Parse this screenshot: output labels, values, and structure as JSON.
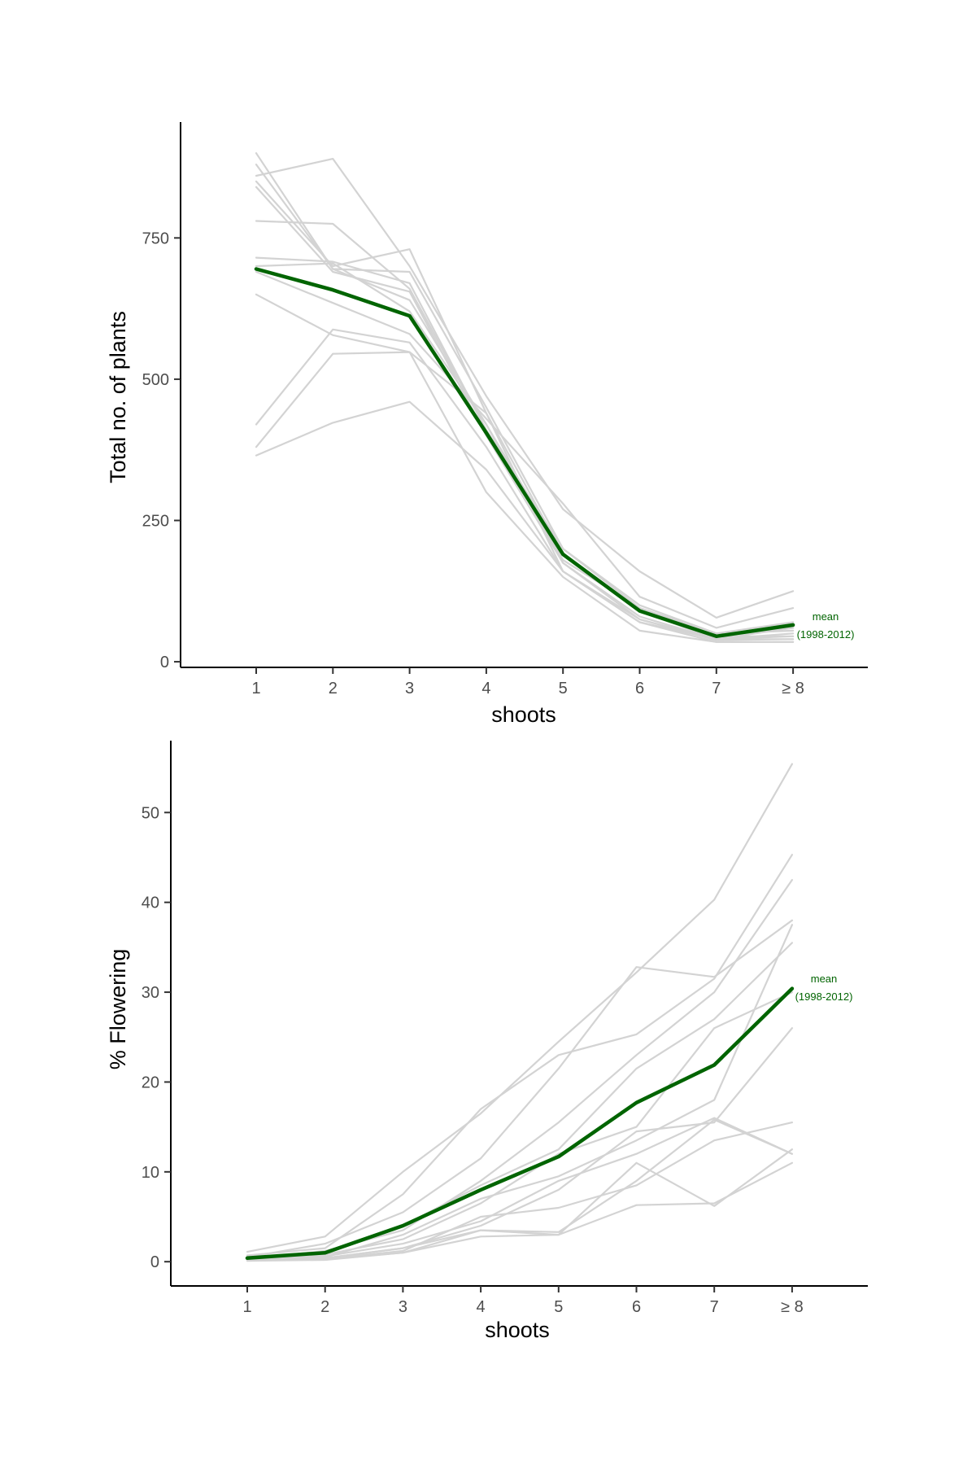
{
  "colors": {
    "background": "#ffffff",
    "year_lines": "#d3d3d3",
    "mean_line": "#006400",
    "axis": "#000000",
    "tick_text": "#4d4d4d"
  },
  "chart_data": [
    {
      "type": "line",
      "xlabel": "shoots",
      "ylabel": "Total no. of plants",
      "categories": [
        "1",
        "2",
        "3",
        "4",
        "5",
        "6",
        "7",
        "≥ 8"
      ],
      "yticks": [
        0,
        250,
        500,
        750
      ],
      "ylim": [
        -10,
        955
      ],
      "grid": false,
      "annotation": {
        "line1": "mean",
        "line2": "(1998-2012)",
        "color": "#006400"
      },
      "mean": {
        "values": [
          695,
          658,
          612,
          405,
          190,
          90,
          45,
          65
        ]
      },
      "years": [
        {
          "values": [
            900,
            695,
            640,
            420,
            175,
            80,
            40,
            50
          ]
        },
        {
          "values": [
            880,
            695,
            690,
            450,
            200,
            100,
            50,
            70
          ]
        },
        {
          "values": [
            860,
            890,
            700,
            470,
            270,
            160,
            78,
            125
          ]
        },
        {
          "values": [
            850,
            700,
            730,
            440,
            190,
            90,
            45,
            60
          ]
        },
        {
          "values": [
            840,
            690,
            655,
            400,
            175,
            75,
            38,
            40
          ]
        },
        {
          "values": [
            780,
            775,
            660,
            410,
            200,
            95,
            45,
            45
          ]
        },
        {
          "values": [
            715,
            708,
            670,
            410,
            180,
            95,
            50,
            55
          ]
        },
        {
          "values": [
            700,
            705,
            620,
            420,
            190,
            90,
            40,
            60
          ]
        },
        {
          "values": [
            690,
            635,
            580,
            430,
            280,
            115,
            60,
            95
          ]
        },
        {
          "values": [
            650,
            578,
            548,
            300,
            150,
            55,
            35,
            35
          ]
        },
        {
          "values": [
            420,
            588,
            565,
            380,
            160,
            70,
            40,
            40
          ]
        },
        {
          "values": [
            380,
            545,
            548,
            440,
            160,
            70,
            35,
            35
          ]
        },
        {
          "values": [
            365,
            423,
            460,
            340,
            160,
            75,
            40,
            45
          ]
        }
      ]
    },
    {
      "type": "line",
      "xlabel": "shoots",
      "ylabel": "% Flowering",
      "categories": [
        "1",
        "2",
        "3",
        "4",
        "5",
        "6",
        "7",
        "≥ 8"
      ],
      "yticks": [
        0,
        10,
        20,
        30,
        40,
        50
      ],
      "ylim": [
        -2.7,
        58
      ],
      "grid": false,
      "annotation": {
        "line1": "mean",
        "line2": "(1998-2012)",
        "color": "#006400"
      },
      "mean": {
        "values": [
          0.4,
          1.0,
          4.0,
          8.0,
          11.7,
          17.7,
          21.9,
          30.4
        ]
      },
      "years": [
        {
          "values": [
            1.1,
            2.8,
            10.0,
            16.5,
            24.5,
            32.2,
            40.3,
            55.4
          ]
        },
        {
          "values": [
            0.7,
            1.5,
            7.5,
            17.0,
            23.0,
            25.3,
            31.5,
            45.3
          ]
        },
        {
          "values": [
            0.5,
            2.0,
            5.5,
            11.5,
            21.5,
            32.8,
            31.7,
            38.0
          ]
        },
        {
          "values": [
            0.3,
            1.2,
            3.5,
            9.0,
            15.5,
            23.0,
            30.0,
            42.5
          ]
        },
        {
          "values": [
            0.5,
            1.0,
            4.0,
            8.5,
            12.5,
            21.5,
            27.0,
            35.5
          ]
        },
        {
          "values": [
            0.4,
            0.8,
            2.5,
            6.5,
            12.0,
            15.0,
            26.0,
            30.0
          ]
        },
        {
          "values": [
            0.3,
            0.5,
            3.0,
            7.0,
            9.5,
            13.5,
            18.0,
            37.5
          ]
        },
        {
          "values": [
            0.2,
            0.4,
            1.5,
            4.0,
            8.0,
            14.5,
            15.5,
            26.0
          ]
        },
        {
          "values": [
            0.3,
            0.6,
            2.0,
            4.5,
            9.0,
            12.0,
            16.0,
            12.0
          ]
        },
        {
          "values": [
            0.2,
            0.3,
            1.2,
            5.0,
            6.0,
            8.5,
            13.5,
            15.5
          ]
        },
        {
          "values": [
            0.1,
            0.2,
            1.0,
            3.5,
            3.0,
            11.0,
            6.2,
            12.5
          ]
        },
        {
          "values": [
            0.2,
            0.3,
            1.0,
            2.8,
            3.0,
            6.3,
            6.5,
            11.0
          ]
        },
        {
          "values": [
            0.3,
            0.4,
            1.5,
            3.5,
            3.3,
            9.0,
            15.8,
            12.0
          ]
        }
      ]
    }
  ]
}
